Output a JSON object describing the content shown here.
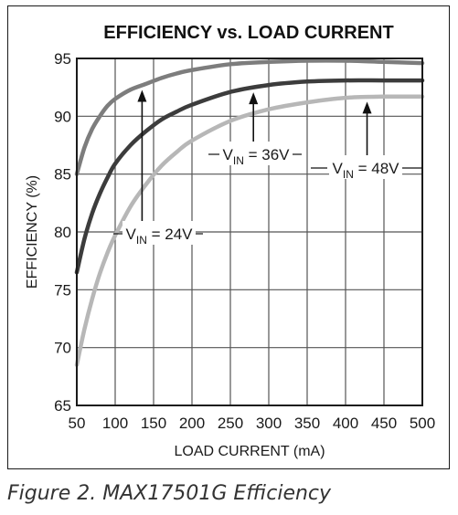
{
  "caption": "Figure 2. MAX17501G Efficiency",
  "chart_data": {
    "type": "line",
    "title": "EFFICIENCY vs. LOAD CURRENT",
    "xlabel": "LOAD CURRENT (mA)",
    "ylabel": "EFFICIENCY (%)",
    "xlim": [
      50,
      500
    ],
    "ylim": [
      65,
      95
    ],
    "xticks": [
      50,
      100,
      150,
      200,
      250,
      300,
      350,
      400,
      450,
      500
    ],
    "yticks": [
      65,
      70,
      75,
      80,
      85,
      90,
      95
    ],
    "grid": true,
    "series": [
      {
        "name": "24V",
        "color": "#7d7d7d",
        "x": [
          50,
          60,
          70,
          80,
          90,
          100,
          120,
          140,
          160,
          180,
          200,
          250,
          300,
          350,
          400,
          450,
          500
        ],
        "y": [
          85.0,
          87.3,
          88.9,
          90.0,
          90.9,
          91.5,
          92.3,
          92.8,
          93.3,
          93.7,
          94.0,
          94.5,
          94.7,
          94.8,
          94.8,
          94.7,
          94.6
        ]
      },
      {
        "name": "36V",
        "color": "#3c3c3c",
        "x": [
          50,
          60,
          70,
          80,
          90,
          100,
          120,
          140,
          160,
          180,
          200,
          250,
          300,
          350,
          400,
          450,
          500
        ],
        "y": [
          76.5,
          79.4,
          81.6,
          83.3,
          84.7,
          85.9,
          87.5,
          88.7,
          89.7,
          90.4,
          91.0,
          92.1,
          92.7,
          93.0,
          93.1,
          93.1,
          93.1
        ]
      },
      {
        "name": "48V",
        "color": "#b7b7b7",
        "x": [
          50,
          60,
          70,
          80,
          90,
          100,
          120,
          140,
          160,
          180,
          200,
          250,
          300,
          350,
          400,
          450,
          500
        ],
        "y": [
          68.5,
          71.6,
          74.2,
          76.4,
          78.2,
          79.7,
          82.2,
          84.1,
          85.7,
          86.9,
          87.9,
          89.6,
          90.6,
          91.2,
          91.6,
          91.7,
          91.7
        ]
      }
    ],
    "annotations": [
      {
        "sub": "IN",
        "value": "24V",
        "series": "24V",
        "arrow_x": 135
      },
      {
        "sub": "IN",
        "value": "36V",
        "series": "36V",
        "arrow_x": 280
      },
      {
        "sub": "IN",
        "value": "48V",
        "series": "48V",
        "arrow_x": 428
      }
    ],
    "annotation_prefix": "V"
  }
}
